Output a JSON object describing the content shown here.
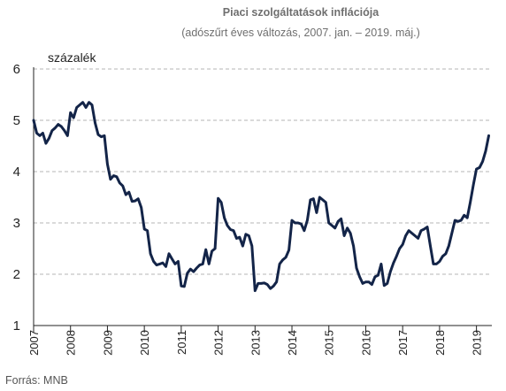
{
  "chart_data": {
    "type": "line",
    "title": "Piaci szolgáltatások inflációja",
    "subtitle": "(adószűrt éves változás, 2007. jan. – 2019. máj.)",
    "ylabel": "százalék",
    "xlabel": "",
    "source": "Forrás: MNB",
    "ylim": [
      1,
      6
    ],
    "yticks": [
      "1",
      "2",
      "3",
      "4",
      "5",
      "6"
    ],
    "xlim": [
      2007.0,
      2019.4167
    ],
    "xticks": [
      "2007",
      "2008",
      "2009",
      "2010",
      "2011",
      "2012",
      "2013",
      "2014",
      "2015",
      "2016",
      "2017",
      "2018",
      "2019"
    ],
    "grid": true,
    "line_color": "#132448",
    "series": [
      {
        "x": [
          2007.0,
          2007.083,
          2007.167,
          2007.25,
          2007.333,
          2007.417,
          2007.5,
          2007.583,
          2007.667,
          2007.75,
          2007.833,
          2007.917,
          2008.0,
          2008.083,
          2008.167,
          2008.25,
          2008.333,
          2008.417,
          2008.5,
          2008.583,
          2008.667,
          2008.75,
          2008.833,
          2008.917,
          2009.0,
          2009.083,
          2009.167,
          2009.25,
          2009.333,
          2009.417,
          2009.5,
          2009.583,
          2009.667,
          2009.75,
          2009.833,
          2009.917,
          2010.0,
          2010.083,
          2010.167,
          2010.25,
          2010.333,
          2010.417,
          2010.5,
          2010.583,
          2010.667,
          2010.75,
          2010.833,
          2010.917,
          2011.0,
          2011.083,
          2011.167,
          2011.25,
          2011.333,
          2011.417,
          2011.5,
          2011.583,
          2011.667,
          2011.75,
          2011.833,
          2011.917,
          2012.0,
          2012.083,
          2012.167,
          2012.25,
          2012.333,
          2012.417,
          2012.5,
          2012.583,
          2012.667,
          2012.75,
          2012.833,
          2012.917,
          2013.0,
          2013.083,
          2013.167,
          2013.25,
          2013.333,
          2013.417,
          2013.5,
          2013.583,
          2013.667,
          2013.75,
          2013.833,
          2013.917,
          2014.0,
          2014.083,
          2014.167,
          2014.25,
          2014.333,
          2014.417,
          2014.5,
          2014.583,
          2014.667,
          2014.75,
          2014.833,
          2014.917,
          2015.0,
          2015.083,
          2015.167,
          2015.25,
          2015.333,
          2015.417,
          2015.5,
          2015.583,
          2015.667,
          2015.75,
          2015.833,
          2015.917,
          2016.0,
          2016.083,
          2016.167,
          2016.25,
          2016.333,
          2016.417,
          2016.5,
          2016.583,
          2016.667,
          2016.75,
          2016.833,
          2016.917,
          2017.0,
          2017.083,
          2017.167,
          2017.25,
          2017.333,
          2017.417,
          2017.5,
          2017.583,
          2017.667,
          2017.75,
          2017.833,
          2017.917,
          2018.0,
          2018.083,
          2018.167,
          2018.25,
          2018.333,
          2018.417,
          2018.5,
          2018.583,
          2018.667,
          2018.75,
          2018.833,
          2018.917,
          2019.0,
          2019.083,
          2019.167,
          2019.25,
          2019.333
        ],
        "values": [
          5.0,
          4.75,
          4.7,
          4.75,
          4.55,
          4.65,
          4.8,
          4.85,
          4.92,
          4.88,
          4.8,
          4.7,
          5.15,
          5.05,
          5.25,
          5.3,
          5.35,
          5.25,
          5.35,
          5.3,
          4.95,
          4.72,
          4.68,
          4.7,
          4.15,
          3.85,
          3.92,
          3.9,
          3.78,
          3.72,
          3.55,
          3.6,
          3.42,
          3.43,
          3.47,
          3.3,
          2.88,
          2.85,
          2.4,
          2.25,
          2.18,
          2.2,
          2.22,
          2.15,
          2.4,
          2.3,
          2.2,
          2.25,
          1.77,
          1.76,
          2.02,
          2.1,
          2.05,
          2.12,
          2.18,
          2.2,
          2.48,
          2.2,
          2.45,
          2.5,
          3.48,
          3.4,
          3.1,
          2.95,
          2.87,
          2.85,
          2.7,
          2.72,
          2.55,
          2.78,
          2.75,
          2.55,
          1.68,
          1.82,
          1.82,
          1.83,
          1.8,
          1.72,
          1.77,
          1.85,
          2.2,
          2.28,
          2.33,
          2.47,
          3.05,
          3.0,
          3.0,
          2.98,
          2.85,
          3.05,
          3.45,
          3.47,
          3.2,
          3.5,
          3.45,
          3.4,
          3.0,
          2.95,
          2.9,
          3.03,
          3.08,
          2.75,
          2.9,
          2.8,
          2.55,
          2.12,
          1.95,
          1.82,
          1.85,
          1.85,
          1.8,
          1.95,
          1.98,
          2.2,
          1.78,
          1.82,
          2.05,
          2.22,
          2.35,
          2.5,
          2.58,
          2.75,
          2.85,
          2.8,
          2.75,
          2.7,
          2.85,
          2.88,
          2.92,
          2.55,
          2.2,
          2.2,
          2.25,
          2.35,
          2.4,
          2.55,
          2.8,
          3.05,
          3.03,
          3.05,
          3.15,
          3.1,
          3.4,
          3.75,
          4.05,
          4.08,
          4.2,
          4.4,
          4.7
        ]
      }
    ]
  }
}
